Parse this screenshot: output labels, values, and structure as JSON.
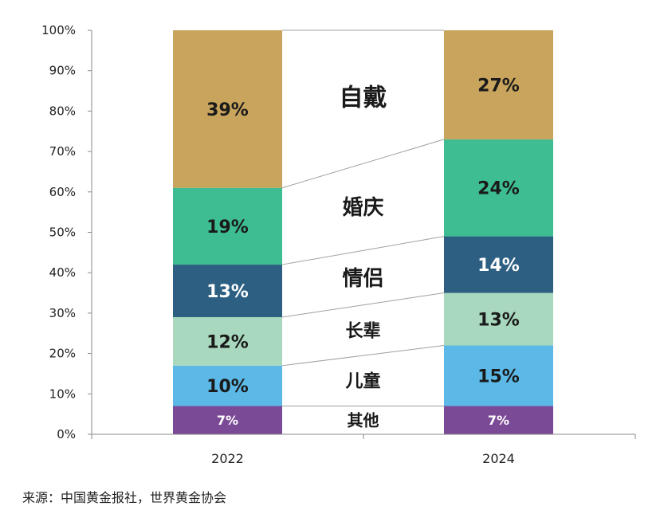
{
  "chart_data": {
    "type": "bar",
    "stacked": true,
    "categories": [
      "2022",
      "2024"
    ],
    "ylim": [
      0,
      100
    ],
    "yticks": [
      "0%",
      "10%",
      "20%",
      "30%",
      "40%",
      "50%",
      "60%",
      "70%",
      "80%",
      "90%",
      "100%"
    ],
    "series": [
      {
        "name": "其他",
        "values": [
          7,
          7
        ],
        "labels": [
          "7%",
          "7%"
        ],
        "color": "#7b4a96",
        "text_color": "#ffffff",
        "font": 16
      },
      {
        "name": "儿童",
        "values": [
          10,
          15
        ],
        "labels": [
          "10%",
          "15%"
        ],
        "color": "#5cb8e6",
        "text_color": "#1a1a1a",
        "font": 22
      },
      {
        "name": "长辈",
        "values": [
          12,
          13
        ],
        "labels": [
          "12%",
          "13%"
        ],
        "color": "#a8d8bd",
        "text_color": "#1a1a1a",
        "font": 22
      },
      {
        "name": "情侣",
        "values": [
          13,
          14
        ],
        "labels": [
          "13%",
          "14%"
        ],
        "color": "#2d5f82",
        "text_color": "#ffffff",
        "font": 22
      },
      {
        "name": "婚庆",
        "values": [
          19,
          24
        ],
        "labels": [
          "19%",
          "24%"
        ],
        "color": "#3dbd91",
        "text_color": "#1a1a1a",
        "font": 22
      },
      {
        "name": "自戴",
        "values": [
          39,
          27
        ],
        "labels": [
          "39%",
          "27%"
        ],
        "color": "#c8a45c",
        "text_color": "#1a1a1a",
        "font": 22
      }
    ]
  },
  "source": "来源：中国黄金报社，世界黄金协会"
}
